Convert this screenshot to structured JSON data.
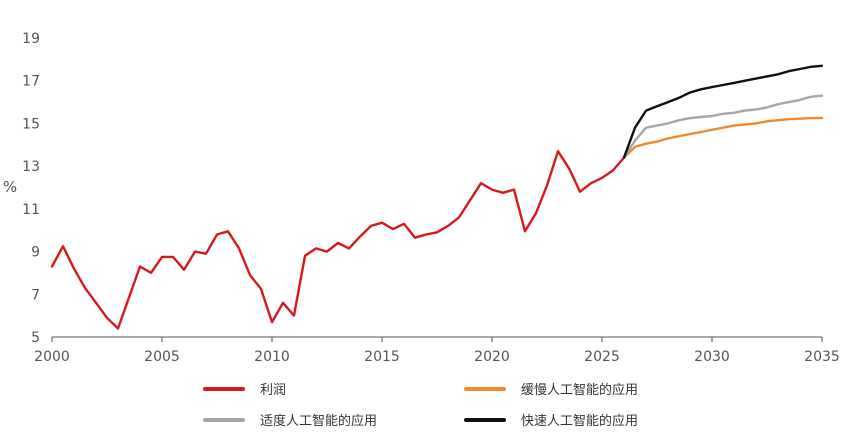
{
  "chart_data": {
    "type": "line",
    "title": "",
    "xlabel": "",
    "ylabel": "%",
    "xlim": [
      2000,
      2035
    ],
    "ylim": [
      5,
      19
    ],
    "xticks": [
      2000,
      2005,
      2010,
      2015,
      2020,
      2025,
      2030,
      2035
    ],
    "yticks": [
      5,
      7,
      9,
      11,
      13,
      15,
      17,
      19
    ],
    "grid": false,
    "legend_position": "bottom",
    "series": [
      {
        "name": "利润",
        "color": "#d7191c",
        "x": [
          2000.0,
          2000.5,
          2001.0,
          2001.5,
          2002.0,
          2002.5,
          2003.0,
          2003.5,
          2004.0,
          2004.5,
          2005.0,
          2005.5,
          2006.0,
          2006.5,
          2007.0,
          2007.5,
          2008.0,
          2008.5,
          2009.0,
          2009.5,
          2010.0,
          2010.5,
          2011.0,
          2011.5,
          2012.0,
          2012.5,
          2013.0,
          2013.5,
          2014.0,
          2014.5,
          2015.0,
          2015.5,
          2016.0,
          2016.5,
          2017.0,
          2017.5,
          2018.0,
          2018.5,
          2019.0,
          2019.5,
          2020.0,
          2020.5,
          2021.0,
          2021.5,
          2022.0,
          2022.5,
          2023.0,
          2023.5,
          2024.0,
          2024.5,
          2025.0,
          2025.5,
          2026.0
        ],
        "values": [
          8.3,
          9.25,
          8.2,
          7.3,
          6.6,
          5.9,
          5.4,
          6.85,
          8.3,
          8.0,
          8.75,
          8.75,
          8.15,
          9.0,
          8.9,
          9.8,
          9.95,
          9.15,
          7.9,
          7.25,
          5.7,
          6.6,
          6.0,
          8.8,
          9.15,
          9.0,
          9.4,
          9.15,
          9.7,
          10.2,
          10.35,
          10.05,
          10.3,
          9.65,
          9.8,
          9.9,
          10.2,
          10.6,
          11.4,
          12.2,
          11.9,
          11.75,
          11.9,
          9.95,
          10.8,
          12.1,
          13.7,
          12.9,
          11.8,
          12.2,
          12.45,
          12.8,
          13.4
        ]
      },
      {
        "name": "缓慢人工智能的应用",
        "color": "#ee8a2f",
        "x": [
          2026.0,
          2026.5,
          2027.0,
          2027.5,
          2028.0,
          2028.5,
          2029.0,
          2029.5,
          2030.0,
          2030.5,
          2031.0,
          2031.5,
          2032.0,
          2032.5,
          2033.0,
          2033.5,
          2034.0,
          2034.5,
          2035.0
        ],
        "values": [
          13.4,
          13.9,
          14.05,
          14.15,
          14.3,
          14.4,
          14.5,
          14.6,
          14.7,
          14.8,
          14.9,
          14.95,
          15.0,
          15.1,
          15.15,
          15.2,
          15.22,
          15.25,
          15.25
        ]
      },
      {
        "name": "适度人工智能的应用",
        "color": "#a6a6a6",
        "x": [
          2026.0,
          2026.5,
          2027.0,
          2027.5,
          2028.0,
          2028.5,
          2029.0,
          2029.5,
          2030.0,
          2030.5,
          2031.0,
          2031.5,
          2032.0,
          2032.5,
          2033.0,
          2033.5,
          2034.0,
          2034.5,
          2035.0
        ],
        "values": [
          13.4,
          14.2,
          14.8,
          14.9,
          15.0,
          15.15,
          15.25,
          15.3,
          15.35,
          15.45,
          15.5,
          15.6,
          15.65,
          15.75,
          15.9,
          16.0,
          16.1,
          16.25,
          16.3
        ]
      },
      {
        "name": "快速人工智能的应用",
        "color": "#111111",
        "x": [
          2026.0,
          2026.5,
          2027.0,
          2027.5,
          2028.0,
          2028.5,
          2029.0,
          2029.5,
          2030.0,
          2030.5,
          2031.0,
          2031.5,
          2032.0,
          2032.5,
          2033.0,
          2033.5,
          2034.0,
          2034.5,
          2035.0
        ],
        "values": [
          13.4,
          14.8,
          15.6,
          15.8,
          16.0,
          16.2,
          16.45,
          16.6,
          16.7,
          16.8,
          16.9,
          17.0,
          17.1,
          17.2,
          17.3,
          17.45,
          17.55,
          17.65,
          17.7
        ]
      }
    ]
  }
}
